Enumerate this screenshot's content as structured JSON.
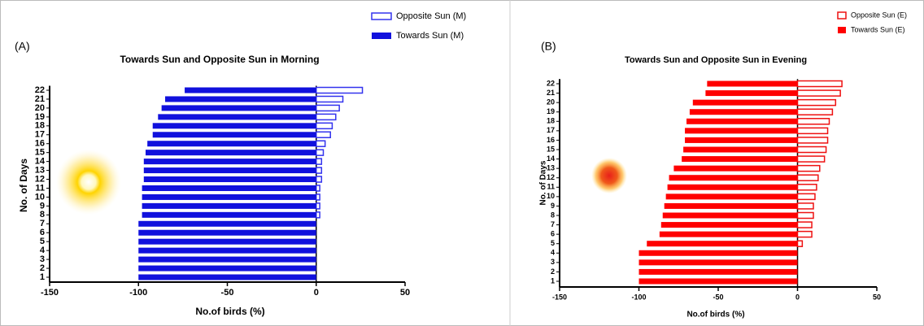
{
  "chart_data": [
    {
      "type": "bar",
      "orientation": "horizontal",
      "panel": "(A)",
      "title": "Towards Sun and Opposite Sun in Morning",
      "xlabel": "No.of birds (%)",
      "ylabel": "No. of Days",
      "categories": [
        "1",
        "2",
        "3",
        "4",
        "5",
        "6",
        "7",
        "8",
        "9",
        "10",
        "11",
        "12",
        "13",
        "14",
        "15",
        "16",
        "17",
        "18",
        "19",
        "20",
        "21",
        "22"
      ],
      "series": [
        {
          "name": "Opposite Sun (M)",
          "color": "#3333ee",
          "outline": true,
          "values": [
            0,
            0,
            0,
            0,
            0,
            0,
            0,
            2,
            2,
            2,
            2,
            3,
            3,
            3,
            4,
            5,
            8,
            9,
            11,
            13,
            15,
            26
          ]
        },
        {
          "name": "Towards Sun (M)",
          "color": "#1111dd",
          "outline": false,
          "values": [
            -100,
            -100,
            -100,
            -100,
            -100,
            -100,
            -100,
            -98,
            -98,
            -98,
            -98,
            -97,
            -97,
            -97,
            -96,
            -95,
            -92,
            -92,
            -89,
            -87,
            -85,
            -74
          ]
        }
      ],
      "xlim": [
        -150,
        50
      ],
      "xticks": [
        -150,
        -100,
        -50,
        0,
        50
      ]
    },
    {
      "type": "bar",
      "orientation": "horizontal",
      "panel": "(B)",
      "title": "Towards Sun and Opposite Sun in Evening",
      "xlabel": "No.of birds (%)",
      "ylabel": "No. of Days",
      "categories": [
        "1",
        "2",
        "3",
        "4",
        "5",
        "6",
        "7",
        "8",
        "9",
        "10",
        "11",
        "12",
        "13",
        "14",
        "15",
        "16",
        "17",
        "18",
        "19",
        "20",
        "21",
        "22"
      ],
      "series": [
        {
          "name": "Opposite Sun (E)",
          "color": "#ee1111",
          "outline": true,
          "values": [
            0,
            0,
            0,
            0,
            3,
            9,
            9,
            10,
            10,
            11,
            12,
            13,
            14,
            17,
            18,
            19,
            19,
            20,
            22,
            24,
            27,
            28
          ]
        },
        {
          "name": "Towards Sun (E)",
          "color": "#ff0000",
          "outline": false,
          "values": [
            -100,
            -100,
            -100,
            -100,
            -95,
            -87,
            -86,
            -85,
            -84,
            -83,
            -82,
            -81,
            -78,
            -73,
            -72,
            -71,
            -71,
            -70,
            -68,
            -66,
            -58,
            -57
          ]
        }
      ],
      "xlim": [
        -150,
        50
      ],
      "xticks": [
        -150,
        -100,
        -50,
        0,
        50
      ]
    }
  ]
}
